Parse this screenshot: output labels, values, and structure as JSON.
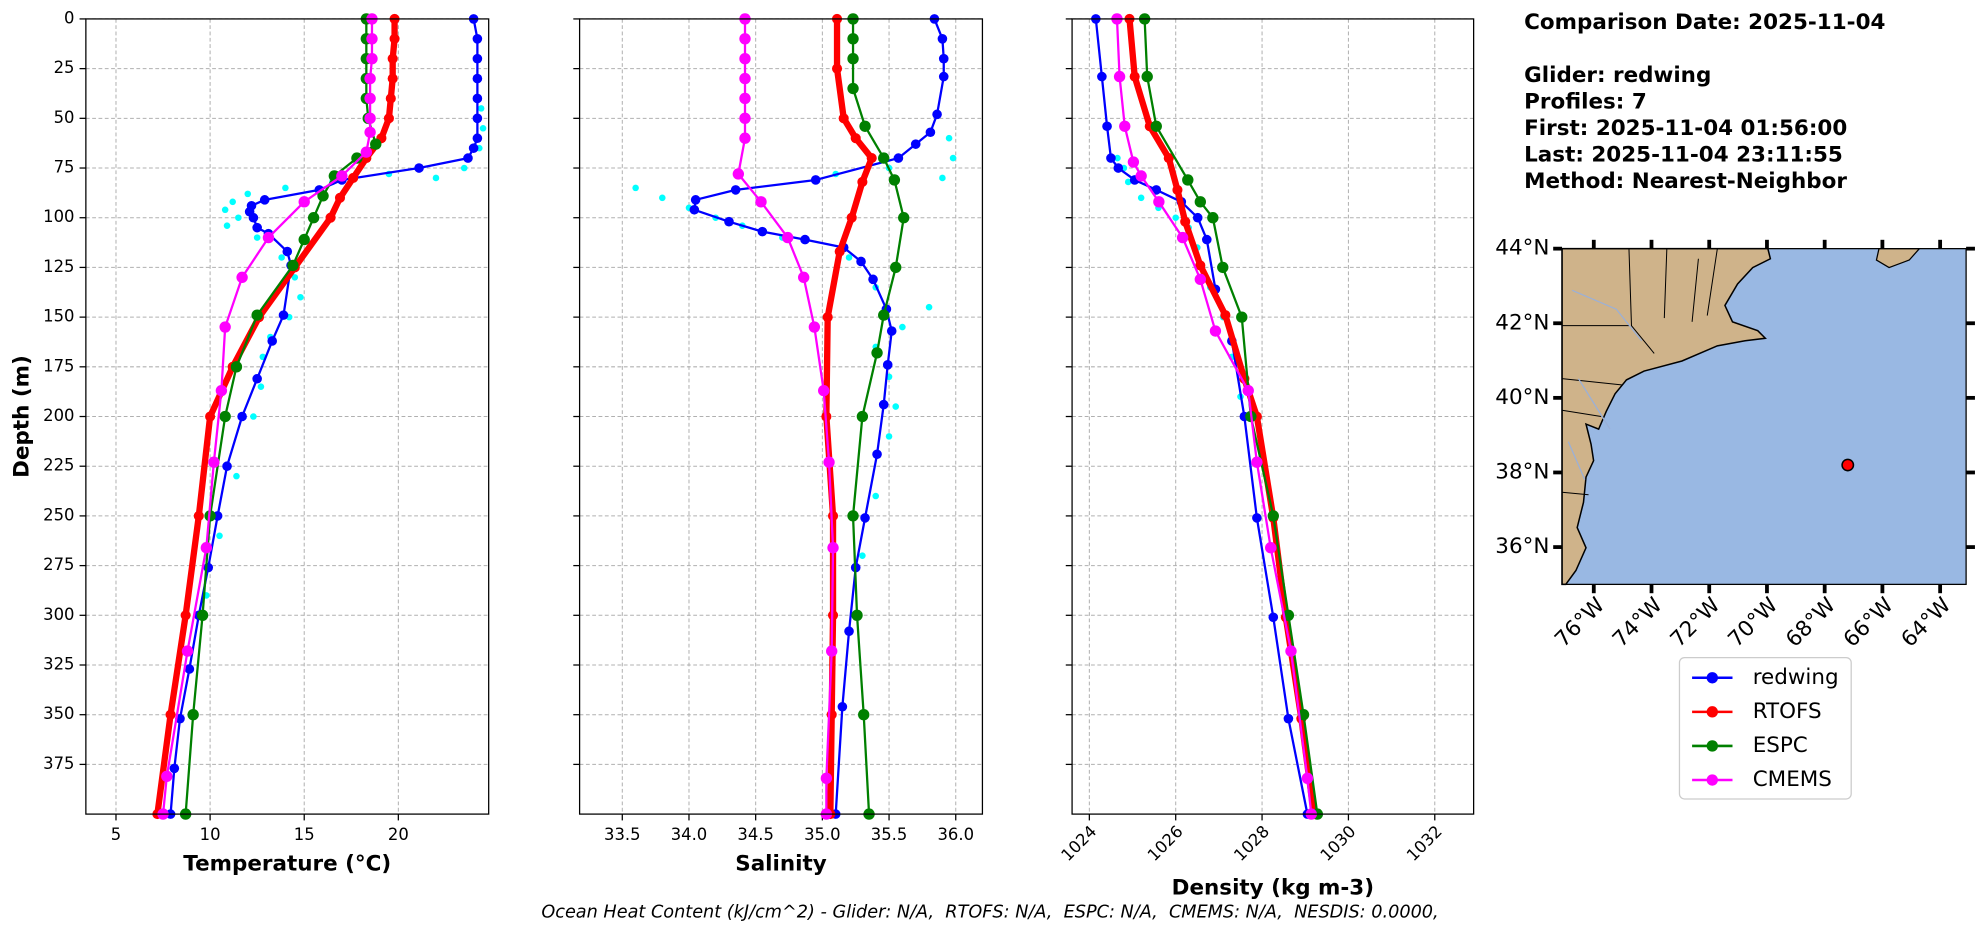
{
  "chart_data": [
    {
      "type": "line",
      "xlabel": "Temperature (°C)",
      "ylabel": "Depth (m)",
      "show_ytick_labels": true,
      "grid": true,
      "xlim": [
        3.4,
        24.8
      ],
      "xticks": [
        5,
        10,
        15,
        20
      ],
      "ylim": [
        400,
        0
      ],
      "yticks": [
        0,
        25,
        50,
        75,
        100,
        125,
        150,
        175,
        200,
        225,
        250,
        275,
        300,
        325,
        350,
        375
      ],
      "series": [
        {
          "depth": [
            0,
            10,
            20,
            30,
            40,
            50,
            60,
            65,
            70,
            75,
            81,
            86,
            91,
            94,
            97,
            100,
            105,
            108,
            117,
            124,
            149,
            162,
            181,
            200,
            225,
            250,
            276,
            300,
            327,
            352,
            377,
            400
          ],
          "values": [
            24.0,
            24.2,
            24.2,
            24.2,
            24.2,
            24.2,
            24.2,
            24.0,
            23.7,
            21.1,
            17.0,
            15.8,
            12.9,
            12.2,
            12.1,
            12.3,
            12.5,
            13.1,
            14.1,
            14.3,
            13.9,
            13.3,
            12.5,
            11.7,
            10.9,
            10.4,
            9.9,
            9.4,
            8.9,
            8.4,
            8.1,
            7.9
          ]
        },
        {
          "depth": [
            0,
            10,
            20,
            30,
            40,
            50,
            60,
            70,
            80,
            90,
            100,
            125,
            150,
            175,
            200,
            250,
            300,
            350,
            400
          ],
          "values": [
            19.8,
            19.8,
            19.7,
            19.7,
            19.6,
            19.5,
            19.1,
            18.3,
            17.6,
            16.9,
            16.4,
            14.5,
            12.6,
            11.2,
            10.0,
            9.4,
            8.7,
            7.9,
            7.2
          ]
        },
        {
          "depth": [
            0,
            10,
            20,
            30,
            40,
            50,
            63,
            70,
            79,
            89,
            100,
            111,
            124,
            149,
            175,
            200,
            250,
            300,
            350,
            400
          ],
          "values": [
            18.3,
            18.3,
            18.3,
            18.3,
            18.3,
            18.4,
            18.8,
            17.8,
            16.6,
            16.0,
            15.5,
            15.0,
            14.4,
            12.5,
            11.4,
            10.8,
            10.0,
            9.6,
            9.1,
            8.7
          ]
        },
        {
          "depth": [
            0,
            10,
            20,
            30,
            40,
            50,
            57,
            67,
            79,
            92,
            110,
            130,
            155,
            187,
            223,
            266,
            318,
            381,
            400
          ],
          "values": [
            18.6,
            18.6,
            18.6,
            18.5,
            18.5,
            18.5,
            18.5,
            18.3,
            17.0,
            15.0,
            13.1,
            11.7,
            10.8,
            10.6,
            10.2,
            9.8,
            8.8,
            7.7,
            7.5
          ]
        }
      ],
      "points": {
        "color": "#00ffff",
        "depth": [
          45,
          55,
          65,
          75,
          80,
          78,
          82,
          85,
          88,
          92,
          96,
          100,
          104,
          110,
          120,
          130,
          140,
          150,
          160,
          170,
          185,
          200,
          230,
          260,
          290
        ],
        "values": [
          24.4,
          24.5,
          24.3,
          23.5,
          22.0,
          19.5,
          16.5,
          14.0,
          12.0,
          11.2,
          10.8,
          11.5,
          10.9,
          12.5,
          13.8,
          14.5,
          14.8,
          14.2,
          13.2,
          12.8,
          12.7,
          12.3,
          11.4,
          10.5,
          9.8
        ]
      }
    },
    {
      "type": "line",
      "xlabel": "Salinity",
      "show_ytick_labels": false,
      "grid": true,
      "xlim": [
        33.18,
        36.2
      ],
      "xticks": [
        33.5,
        {
          "value": 34,
          "label": "34.0"
        },
        34.5,
        {
          "value": 35,
          "label": "35.0"
        },
        35.5,
        {
          "value": 36,
          "label": "36.0"
        }
      ],
      "ylim": [
        400,
        0
      ],
      "yticks": [
        0,
        25,
        50,
        75,
        100,
        125,
        150,
        175,
        200,
        225,
        250,
        275,
        300,
        325,
        350,
        375
      ],
      "series": [
        {
          "depth": [
            0,
            10,
            20,
            29,
            48,
            57,
            63,
            70,
            81,
            86,
            91,
            96,
            102,
            107,
            111,
            115,
            122,
            131,
            146,
            157,
            174,
            194,
            219,
            251,
            276,
            308,
            346,
            400
          ],
          "values": [
            35.84,
            35.9,
            35.91,
            35.91,
            35.86,
            35.81,
            35.7,
            35.57,
            34.95,
            34.35,
            34.05,
            34.04,
            34.3,
            34.55,
            34.87,
            35.16,
            35.29,
            35.38,
            35.48,
            35.52,
            35.49,
            35.46,
            35.41,
            35.32,
            35.25,
            35.2,
            35.15,
            35.1
          ]
        },
        {
          "depth": [
            0,
            25,
            50,
            60,
            70,
            82,
            100,
            117,
            150,
            200,
            250,
            300,
            350,
            400
          ],
          "values": [
            35.11,
            35.11,
            35.16,
            35.25,
            35.37,
            35.3,
            35.22,
            35.13,
            35.04,
            35.03,
            35.08,
            35.08,
            35.07,
            35.06
          ]
        },
        {
          "depth": [
            0,
            10,
            20,
            35,
            54,
            70,
            81,
            100,
            125,
            149,
            168,
            200,
            250,
            300,
            350,
            400
          ],
          "values": [
            35.23,
            35.23,
            35.23,
            35.23,
            35.32,
            35.46,
            35.54,
            35.61,
            35.55,
            35.46,
            35.41,
            35.3,
            35.23,
            35.26,
            35.31,
            35.35
          ]
        },
        {
          "depth": [
            0,
            10,
            20,
            30,
            40,
            50,
            60,
            78,
            92,
            110,
            130,
            155,
            187,
            223,
            266,
            318,
            382,
            400
          ],
          "values": [
            34.42,
            34.42,
            34.42,
            34.42,
            34.42,
            34.42,
            34.42,
            34.37,
            34.54,
            34.74,
            34.86,
            34.94,
            35.01,
            35.05,
            35.08,
            35.07,
            35.03,
            35.03
          ]
        }
      ],
      "points": {
        "color": "#00ffff",
        "depth": [
          60,
          70,
          80,
          75,
          78,
          85,
          90,
          95,
          100,
          104,
          110,
          120,
          135,
          145,
          155,
          165,
          180,
          195,
          210,
          240,
          270
        ],
        "values": [
          35.95,
          35.98,
          35.9,
          35.5,
          35.1,
          33.6,
          33.8,
          34.0,
          34.2,
          34.4,
          34.7,
          35.2,
          35.4,
          35.8,
          35.6,
          35.4,
          35.5,
          35.55,
          35.5,
          35.4,
          35.3
        ]
      }
    },
    {
      "type": "line",
      "xlabel": "Density (kg m-3)",
      "show_ytick_labels": false,
      "grid": true,
      "xtick_rotation": 45,
      "xlim": [
        1023.6,
        1032.9
      ],
      "xticks": [
        1024,
        1026,
        1028,
        1030,
        1032
      ],
      "ylim": [
        400,
        0
      ],
      "yticks": [
        0,
        25,
        50,
        75,
        100,
        125,
        150,
        175,
        200,
        225,
        250,
        275,
        300,
        325,
        350,
        375
      ],
      "series": [
        {
          "depth": [
            0,
            29,
            54,
            70,
            75,
            81,
            86,
            92,
            100,
            111,
            136,
            162,
            200,
            251,
            301,
            352,
            400
          ],
          "values": [
            1024.15,
            1024.29,
            1024.41,
            1024.5,
            1024.67,
            1025.05,
            1025.55,
            1026.13,
            1026.51,
            1026.72,
            1026.92,
            1027.3,
            1027.59,
            1027.88,
            1028.26,
            1028.61,
            1029.05
          ]
        },
        {
          "depth": [
            0,
            29,
            54,
            70,
            86,
            102,
            124,
            149,
            181,
            200,
            251,
            301,
            352,
            400
          ],
          "values": [
            1024.93,
            1025.05,
            1025.4,
            1025.84,
            1026.04,
            1026.22,
            1026.57,
            1027.15,
            1027.59,
            1027.88,
            1028.26,
            1028.55,
            1028.91,
            1029.2
          ]
        },
        {
          "depth": [
            0,
            29,
            54,
            81,
            92,
            100,
            125,
            150,
            200,
            250,
            300,
            350,
            400
          ],
          "values": [
            1025.28,
            1025.34,
            1025.55,
            1026.28,
            1026.57,
            1026.86,
            1027.09,
            1027.53,
            1027.74,
            1028.26,
            1028.61,
            1028.96,
            1029.28
          ]
        },
        {
          "depth": [
            0,
            29,
            54,
            72,
            79,
            92,
            110,
            131,
            157,
            187,
            223,
            266,
            318,
            382,
            400
          ],
          "values": [
            1024.64,
            1024.7,
            1024.82,
            1025.02,
            1025.2,
            1025.61,
            1026.16,
            1026.57,
            1026.92,
            1027.68,
            1027.88,
            1028.2,
            1028.67,
            1029.05,
            1029.14
          ]
        }
      ],
      "points": {
        "color": "#00ffff",
        "depth": [
          70,
          75,
          82,
          90,
          95,
          100,
          105,
          115,
          135,
          150,
          170,
          190
        ],
        "values": [
          1024.65,
          1024.8,
          1024.9,
          1025.2,
          1025.6,
          1026.0,
          1026.3,
          1026.5,
          1026.8,
          1027.1,
          1027.3,
          1027.5
        ]
      }
    }
  ],
  "legend": {
    "entries": [
      {
        "name": "redwing",
        "color": "#0000ff",
        "line_width": 1.8,
        "marker_size": 3.8
      },
      {
        "name": "RTOFS",
        "color": "#ff0000",
        "line_width": 5,
        "marker_size": 4
      },
      {
        "name": "ESPC",
        "color": "#008000",
        "line_width": 1.8,
        "marker_size": 4.5
      },
      {
        "name": "CMEMS",
        "color": "#ff00ff",
        "line_width": 1.8,
        "marker_size": 4.5
      }
    ]
  },
  "info": {
    "lines": [
      "Comparison Date: 2025-11-04",
      "Glider: redwing",
      "Profiles: 7",
      "First: 2025-11-04 01:56:00",
      "Last: 2025-11-04 23:11:55",
      "Method: Nearest-Neighbor"
    ]
  },
  "map": {
    "latlim": [
      35,
      44
    ],
    "lonlim": [
      -77.1,
      -63.1
    ],
    "lat_ticks": [
      {
        "value": 36,
        "label": "36°N"
      },
      {
        "value": 38,
        "label": "38°N"
      },
      {
        "value": 40,
        "label": "40°N"
      },
      {
        "value": 42,
        "label": "42°N"
      },
      {
        "value": 44,
        "label": "44°N"
      }
    ],
    "lon_ticks": [
      {
        "value": -76,
        "label": "76°W"
      },
      {
        "value": -74,
        "label": "74°W"
      },
      {
        "value": -72,
        "label": "72°W"
      },
      {
        "value": -70,
        "label": "70°W"
      },
      {
        "value": -68,
        "label": "68°W"
      },
      {
        "value": -66,
        "label": "66°W"
      },
      {
        "value": -64,
        "label": "64°W"
      }
    ],
    "marker": {
      "lat": 38.2,
      "lon": -67.2,
      "color": "#ff0000"
    }
  },
  "footer": "Ocean Heat Content (kJ/cm^2) - Glider: N/A,  RTOFS: N/A,  ESPC: N/A,  CMEMS: N/A,  NESDIS: 0.0000,"
}
